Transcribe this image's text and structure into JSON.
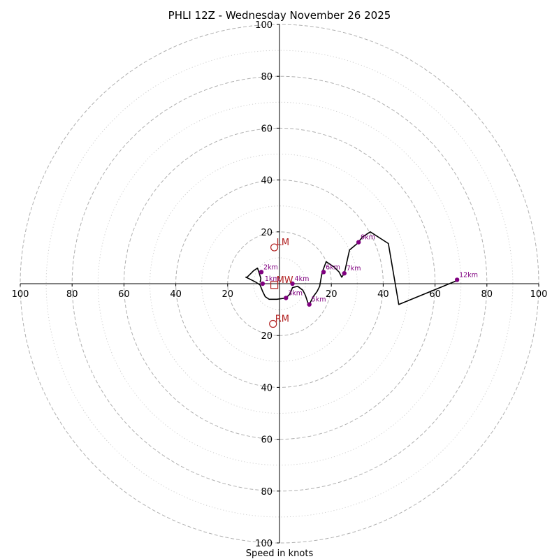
{
  "chart_data": {
    "type": "hodograph",
    "title": "PHLI 12Z - Wednesday November 26 2025",
    "xlabel": "Speed in knots",
    "range": [
      -100,
      100
    ],
    "rings_dashed": [
      20,
      40,
      60,
      80,
      100
    ],
    "rings_dotted": [
      10,
      30,
      50,
      70,
      90
    ],
    "ticks": [
      {
        "value": -100,
        "label": "100"
      },
      {
        "value": -80,
        "label": "80"
      },
      {
        "value": -60,
        "label": "60"
      },
      {
        "value": -40,
        "label": "40"
      },
      {
        "value": -20,
        "label": "20"
      },
      {
        "value": 20,
        "label": "20"
      },
      {
        "value": 40,
        "label": "40"
      },
      {
        "value": 60,
        "label": "60"
      },
      {
        "value": 80,
        "label": "80"
      },
      {
        "value": 100,
        "label": "100"
      }
    ],
    "trace": [
      [
        -7.5,
        0.5
      ],
      [
        -7.2,
        2.0
      ],
      [
        -7.8,
        4.0
      ],
      [
        -8.5,
        6.0
      ],
      [
        -10.0,
        5.0
      ],
      [
        -11.0,
        4.0
      ],
      [
        -12.5,
        2.5
      ],
      [
        -13.0,
        2.5
      ],
      [
        -11.5,
        1.8
      ],
      [
        -9.0,
        0.5
      ],
      [
        -7.5,
        -0.5
      ],
      [
        -6.5,
        -3.0
      ],
      [
        -5.5,
        -5.0
      ],
      [
        -4.0,
        -6.0
      ],
      [
        -1.0,
        -6.0
      ],
      [
        2.5,
        -5.5
      ],
      [
        4.0,
        -4.0
      ],
      [
        5.0,
        -1.5
      ],
      [
        7.0,
        -1.0
      ],
      [
        9.0,
        -2.5
      ],
      [
        10.0,
        -4.5
      ],
      [
        11.0,
        -7.5
      ],
      [
        11.5,
        -8.0
      ],
      [
        13.0,
        -5.0
      ],
      [
        14.5,
        -3.0
      ],
      [
        15.5,
        -1.0
      ],
      [
        16.0,
        2.0
      ],
      [
        16.5,
        4.5
      ],
      [
        18.0,
        8.5
      ],
      [
        21.0,
        6.5
      ],
      [
        23.0,
        4.5
      ],
      [
        24.0,
        2.5
      ],
      [
        25.0,
        4.0
      ],
      [
        27.0,
        13.0
      ],
      [
        30.0,
        15.5
      ],
      [
        32.0,
        18.0
      ],
      [
        35.0,
        20.0
      ],
      [
        42.0,
        15.5
      ],
      [
        46.0,
        -8.0
      ],
      [
        68.0,
        1.0
      ]
    ],
    "levels": [
      {
        "label": "1km",
        "u": -6.5,
        "v": 0.0
      },
      {
        "label": "2km",
        "u": -7.0,
        "v": 4.5
      },
      {
        "label": "3km",
        "u": 2.5,
        "v": -5.5
      },
      {
        "label": "4km",
        "u": 5.0,
        "v": 0.0
      },
      {
        "label": "5km",
        "u": 11.5,
        "v": -8.0
      },
      {
        "label": "6km",
        "u": 17.0,
        "v": 4.5
      },
      {
        "label": "7km",
        "u": 25.0,
        "v": 4.0
      },
      {
        "label": "9km",
        "u": 30.5,
        "v": 16.0
      },
      {
        "label": "12km",
        "u": 68.5,
        "v": 1.5
      }
    ],
    "storm_motions": [
      {
        "label": "LM",
        "u": -2.0,
        "v": 14.0,
        "marker": "circle"
      },
      {
        "label": "MW",
        "u": -2.0,
        "v": -0.5,
        "marker": "square"
      },
      {
        "label": "RM",
        "u": -2.5,
        "v": -15.5,
        "marker": "circle"
      }
    ],
    "colors": {
      "trace": "#000000",
      "level_points": "#800080",
      "storm_motion": "#b22222",
      "grid": "#b0b0b0",
      "axes": "#000000"
    }
  }
}
